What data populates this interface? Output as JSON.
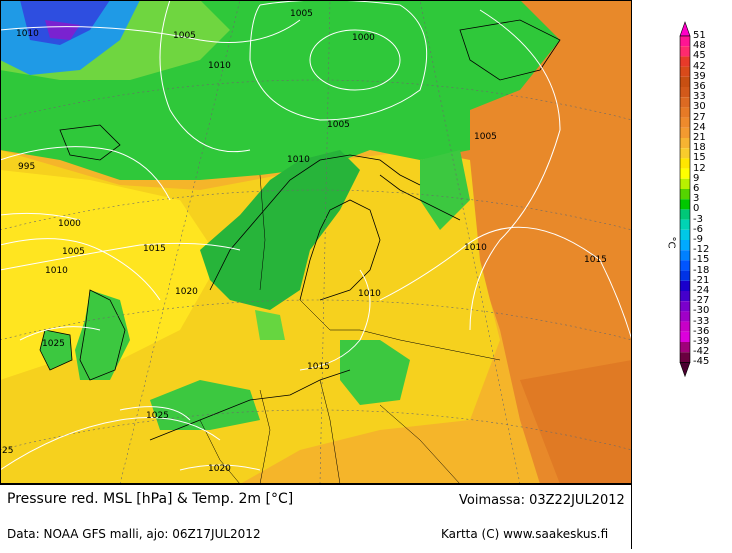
{
  "map": {
    "isobar_labels": [
      {
        "text": "1010",
        "id": "a"
      },
      {
        "text": "1005",
        "id": "b"
      },
      {
        "text": "1005",
        "id": "c"
      },
      {
        "text": "1000",
        "id": "d"
      },
      {
        "text": "1010",
        "id": "e"
      },
      {
        "text": "1005",
        "id": "f"
      },
      {
        "text": "1005",
        "id": "g"
      },
      {
        "text": "995",
        "id": "h"
      },
      {
        "text": "1010",
        "id": "i"
      },
      {
        "text": "1000",
        "id": "j"
      },
      {
        "text": "1005",
        "id": "k"
      },
      {
        "text": "1015",
        "id": "l"
      },
      {
        "text": "1010",
        "id": "m"
      },
      {
        "text": "1010",
        "id": "n"
      },
      {
        "text": "1015",
        "id": "o"
      },
      {
        "text": "1020",
        "id": "p"
      },
      {
        "text": "1010",
        "id": "q"
      },
      {
        "text": "1025",
        "id": "r"
      },
      {
        "text": "1015",
        "id": "s"
      },
      {
        "text": "1025",
        "id": "t"
      },
      {
        "text": "1020",
        "id": "u"
      },
      {
        "text": "25",
        "id": "v"
      }
    ]
  },
  "footer": {
    "title": "Pressure red. MSL [hPa] & Temp. 2m [°C]",
    "valid": "Voimassa: 03Z22JUL2012",
    "data_source": "Data: NOAA GFS malli, ajo: 06Z17JUL2012",
    "credit": "Kartta (C) www.saakeskus.fi"
  },
  "legend": {
    "unit": "°C",
    "ticks": [
      "51",
      "48",
      "45",
      "42",
      "39",
      "36",
      "33",
      "30",
      "27",
      "24",
      "21",
      "18",
      "15",
      "12",
      "9",
      "6",
      "3",
      "0",
      "-3",
      "-6",
      "-9",
      "-12",
      "-15",
      "-18",
      "-21",
      "-24",
      "-27",
      "-30",
      "-33",
      "-36",
      "-39",
      "-42",
      "-45"
    ],
    "colors": [
      "#ff00c8",
      "#ff1493",
      "#ff2a6e",
      "#e83a2a",
      "#d94a1a",
      "#c84f12",
      "#d2591a",
      "#dc6a22",
      "#e67a26",
      "#ee8a2c",
      "#f39a30",
      "#f6b432",
      "#f8cc2c",
      "#ffe600",
      "#ffff00",
      "#b8f000",
      "#54d400",
      "#00c800",
      "#00c878",
      "#00d4b4",
      "#00c8e6",
      "#00aaff",
      "#0080ff",
      "#0055ff",
      "#0033e6",
      "#1a00cc",
      "#4400cc",
      "#7a00cc",
      "#a000c8",
      "#c800c8",
      "#dc00dc",
      "#a0007a",
      "#6a0040"
    ]
  }
}
